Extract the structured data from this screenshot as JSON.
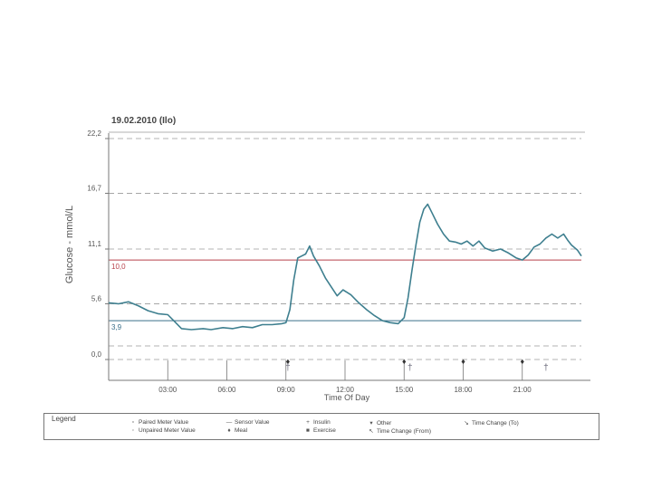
{
  "chart_data": {
    "type": "line",
    "title": "19.02.2010 (Ilo)",
    "xlabel": "Time Of Day",
    "ylabel": "Glucose - mmol/L",
    "x_range_hours": [
      0,
      24
    ],
    "y_range": [
      0,
      22.2
    ],
    "x_ticks": [
      {
        "hour": 3,
        "label": "03:00"
      },
      {
        "hour": 6,
        "label": "06:00"
      },
      {
        "hour": 9,
        "label": "09:00"
      },
      {
        "hour": 12,
        "label": "12:00"
      },
      {
        "hour": 15,
        "label": "15:00"
      },
      {
        "hour": 18,
        "label": "18:00"
      },
      {
        "hour": 21,
        "label": "21:00"
      }
    ],
    "y_ticks": [
      {
        "value": 22.2,
        "label": "22,2"
      },
      {
        "value": 16.7,
        "label": "16,7"
      },
      {
        "value": 11.1,
        "label": "11,1"
      },
      {
        "value": 5.6,
        "label": "5,6"
      },
      {
        "value": 0.0,
        "label": "0,0"
      }
    ],
    "target_lines": [
      {
        "value": 10.0,
        "label": "10,0",
        "color": "#b8404a"
      },
      {
        "value": 3.9,
        "label": "3,9",
        "color": "#3a6f8a"
      }
    ],
    "grid": "dashed horizontal",
    "series": [
      {
        "name": "Sensor Value",
        "color": "#3e7f8f",
        "points": [
          [
            0.0,
            5.7
          ],
          [
            0.5,
            5.6
          ],
          [
            1.0,
            5.8
          ],
          [
            1.5,
            5.4
          ],
          [
            2.0,
            4.9
          ],
          [
            2.5,
            4.6
          ],
          [
            3.0,
            4.5
          ],
          [
            3.3,
            3.9
          ],
          [
            3.7,
            3.1
          ],
          [
            4.2,
            3.0
          ],
          [
            4.8,
            3.1
          ],
          [
            5.2,
            3.0
          ],
          [
            5.8,
            3.2
          ],
          [
            6.3,
            3.1
          ],
          [
            6.8,
            3.3
          ],
          [
            7.3,
            3.2
          ],
          [
            7.8,
            3.5
          ],
          [
            8.3,
            3.5
          ],
          [
            8.8,
            3.6
          ],
          [
            9.0,
            3.7
          ],
          [
            9.2,
            5.0
          ],
          [
            9.4,
            8.0
          ],
          [
            9.6,
            10.2
          ],
          [
            9.8,
            10.4
          ],
          [
            10.0,
            10.6
          ],
          [
            10.2,
            11.4
          ],
          [
            10.4,
            10.4
          ],
          [
            10.7,
            9.4
          ],
          [
            11.0,
            8.2
          ],
          [
            11.3,
            7.3
          ],
          [
            11.6,
            6.4
          ],
          [
            11.9,
            7.0
          ],
          [
            12.3,
            6.5
          ],
          [
            12.7,
            5.7
          ],
          [
            13.1,
            5.0
          ],
          [
            13.5,
            4.4
          ],
          [
            13.9,
            3.9
          ],
          [
            14.3,
            3.7
          ],
          [
            14.7,
            3.6
          ],
          [
            15.0,
            4.2
          ],
          [
            15.2,
            6.2
          ],
          [
            15.4,
            9.0
          ],
          [
            15.6,
            11.5
          ],
          [
            15.8,
            13.8
          ],
          [
            16.0,
            15.1
          ],
          [
            16.2,
            15.6
          ],
          [
            16.4,
            14.8
          ],
          [
            16.7,
            13.6
          ],
          [
            17.0,
            12.6
          ],
          [
            17.3,
            11.9
          ],
          [
            17.6,
            11.8
          ],
          [
            17.9,
            11.6
          ],
          [
            18.2,
            11.9
          ],
          [
            18.5,
            11.4
          ],
          [
            18.8,
            11.9
          ],
          [
            19.1,
            11.2
          ],
          [
            19.5,
            10.9
          ],
          [
            19.9,
            11.1
          ],
          [
            20.3,
            10.7
          ],
          [
            20.7,
            10.2
          ],
          [
            21.0,
            10.0
          ],
          [
            21.3,
            10.5
          ],
          [
            21.6,
            11.3
          ],
          [
            21.9,
            11.6
          ],
          [
            22.2,
            12.2
          ],
          [
            22.5,
            12.6
          ],
          [
            22.8,
            12.2
          ],
          [
            23.1,
            12.6
          ],
          [
            23.3,
            12.0
          ],
          [
            23.5,
            11.5
          ],
          [
            23.8,
            11.0
          ],
          [
            24.0,
            10.4
          ]
        ]
      }
    ],
    "markers": [
      {
        "type": "meal",
        "hour": 9.1,
        "symbol": "♦"
      },
      {
        "type": "meal",
        "hour": 15.0,
        "symbol": "♦"
      },
      {
        "type": "meal",
        "hour": 18.0,
        "symbol": "♦"
      },
      {
        "type": "meal",
        "hour": 21.0,
        "symbol": "♦"
      },
      {
        "type": "other",
        "hour": 9.1,
        "symbol": "†"
      },
      {
        "type": "other",
        "hour": 15.3,
        "symbol": "†"
      },
      {
        "type": "other",
        "hour": 22.2,
        "symbol": "†"
      }
    ]
  },
  "legend": {
    "title": "Legend",
    "items": [
      {
        "symbol": "▫",
        "label": "Paired Meter Value"
      },
      {
        "symbol": "◦",
        "label": "Unpaired Meter Value"
      },
      {
        "symbol": "—",
        "label": "Sensor Value"
      },
      {
        "symbol": "♦",
        "label": "Meal"
      },
      {
        "symbol": "+",
        "label": "Insulin"
      },
      {
        "symbol": "■",
        "label": "Exercise"
      },
      {
        "symbol": "▾",
        "label": "Other"
      },
      {
        "symbol": "↖",
        "label": "Time Change (From)"
      },
      {
        "symbol": "↘",
        "label": "Time Change (To)"
      }
    ]
  }
}
